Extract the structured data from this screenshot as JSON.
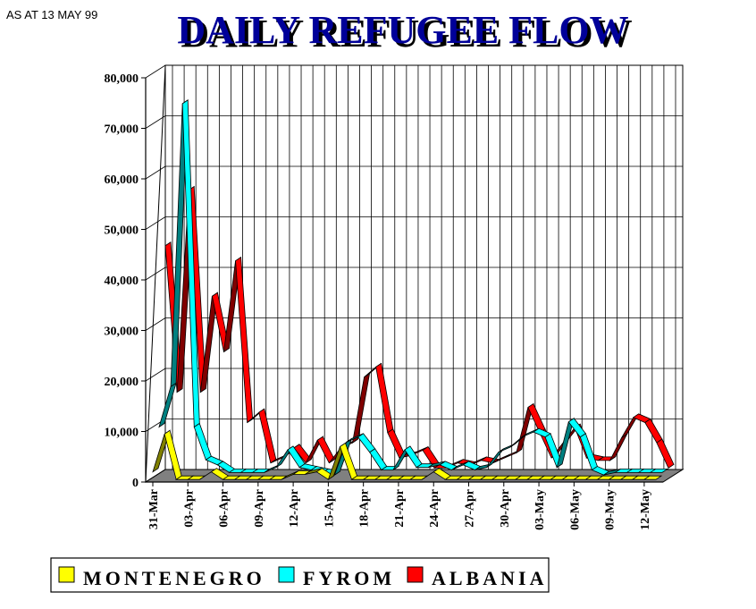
{
  "note": "AS AT 13 MAY 99",
  "chart_data": {
    "type": "line",
    "title": "DAILY REFUGEE FLOW",
    "ylim": [
      0,
      80000
    ],
    "yticks": [
      0,
      10000,
      20000,
      30000,
      40000,
      50000,
      60000,
      70000,
      80000
    ],
    "ytick_labels": [
      "0",
      "10,000",
      "20,000",
      "30,000",
      "40,000",
      "50,000",
      "60,000",
      "70,000",
      "80,000"
    ],
    "x": [
      "31-Mar",
      "01-Apr",
      "02-Apr",
      "03-Apr",
      "04-Apr",
      "05-Apr",
      "06-Apr",
      "07-Apr",
      "08-Apr",
      "09-Apr",
      "10-Apr",
      "11-Apr",
      "12-Apr",
      "13-Apr",
      "14-Apr",
      "15-Apr",
      "16-Apr",
      "17-Apr",
      "18-Apr",
      "19-Apr",
      "20-Apr",
      "21-Apr",
      "22-Apr",
      "23-Apr",
      "24-Apr",
      "25-Apr",
      "26-Apr",
      "27-Apr",
      "28-Apr",
      "29-Apr",
      "30-Apr",
      "01-May",
      "02-May",
      "03-May",
      "04-May",
      "05-May",
      "06-May",
      "07-May",
      "08-May",
      "09-May",
      "10-May",
      "11-May",
      "12-May",
      "13-May"
    ],
    "xtick_labels": [
      "31-Mar",
      "03-Apr",
      "06-Apr",
      "09-Apr",
      "12-Apr",
      "15-Apr",
      "18-Apr",
      "21-Apr",
      "24-Apr",
      "27-Apr",
      "30-Apr",
      "03-May",
      "06-May",
      "09-May",
      "12-May"
    ],
    "xtick_step": 3,
    "grid": true,
    "legend_position": "bottom-left",
    "series": [
      {
        "name": "MONTENEGRO",
        "color": "#ffff00",
        "values": [
          2000,
          9500,
          500,
          500,
          500,
          2000,
          500,
          500,
          500,
          500,
          500,
          500,
          1500,
          1500,
          2000,
          500,
          7000,
          500,
          500,
          500,
          500,
          500,
          500,
          500,
          2000,
          500,
          500,
          500,
          500,
          500,
          500,
          500,
          500,
          500,
          500,
          500,
          500,
          500,
          500,
          500,
          500,
          500,
          500,
          500
        ]
      },
      {
        "name": "FYROM",
        "color": "#00ffff",
        "values": [
          10000,
          18000,
          74000,
          10000,
          3500,
          2500,
          1000,
          1000,
          1000,
          1000,
          2000,
          5500,
          2000,
          1500,
          1000,
          500,
          7000,
          8000,
          5000,
          1500,
          1500,
          5500,
          2000,
          2000,
          2500,
          1500,
          2500,
          1500,
          2000,
          5000,
          6000,
          8000,
          9000,
          8000,
          2000,
          11000,
          8000,
          1500,
          500,
          1000,
          1000,
          1000,
          1000,
          1000
        ]
      },
      {
        "name": "ALBANIA",
        "color": "#ff0000",
        "values": [
          45000,
          16000,
          56000,
          16000,
          35000,
          24000,
          42000,
          10000,
          12000,
          2000,
          3000,
          5000,
          2000,
          6500,
          2000,
          5000,
          6000,
          19000,
          21000,
          8000,
          3000,
          3500,
          4500,
          1000,
          1000,
          2000,
          1500,
          2500,
          2000,
          3000,
          4000,
          13000,
          8000,
          3000,
          6000,
          9000,
          3000,
          2500,
          2500,
          7000,
          11000,
          10000,
          6000,
          1000
        ]
      }
    ]
  }
}
